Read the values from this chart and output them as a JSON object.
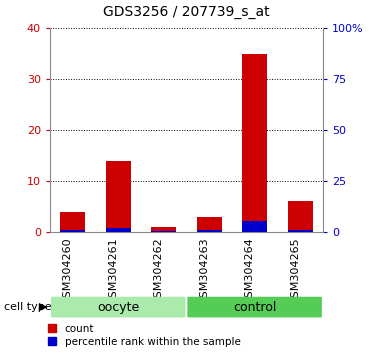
{
  "title": "GDS3256 / 207739_s_at",
  "samples": [
    "GSM304260",
    "GSM304261",
    "GSM304262",
    "GSM304263",
    "GSM304264",
    "GSM304265"
  ],
  "counts": [
    4,
    14,
    1,
    3,
    35,
    6
  ],
  "percentile_ranks": [
    0.75,
    2.0,
    0.5,
    0.75,
    5.5,
    0.75
  ],
  "groups": [
    {
      "name": "oocyte",
      "indices": [
        0,
        1,
        2
      ],
      "color": "#aaeaaa"
    },
    {
      "name": "control",
      "indices": [
        3,
        4,
        5
      ],
      "color": "#55cc55"
    }
  ],
  "ylim_left": [
    0,
    40
  ],
  "ylim_right": [
    0,
    100
  ],
  "yticks_left": [
    0,
    10,
    20,
    30,
    40
  ],
  "yticks_right": [
    0,
    25,
    50,
    75,
    100
  ],
  "ytick_labels_right": [
    "0",
    "25",
    "50",
    "75",
    "100%"
  ],
  "bar_color_red": "#cc0000",
  "bar_color_blue": "#0000cc",
  "bar_width": 0.55,
  "title_fontsize": 10,
  "tick_fontsize": 8,
  "group_label_fontsize": 9,
  "legend_fontsize": 7.5,
  "cell_type_fontsize": 8
}
